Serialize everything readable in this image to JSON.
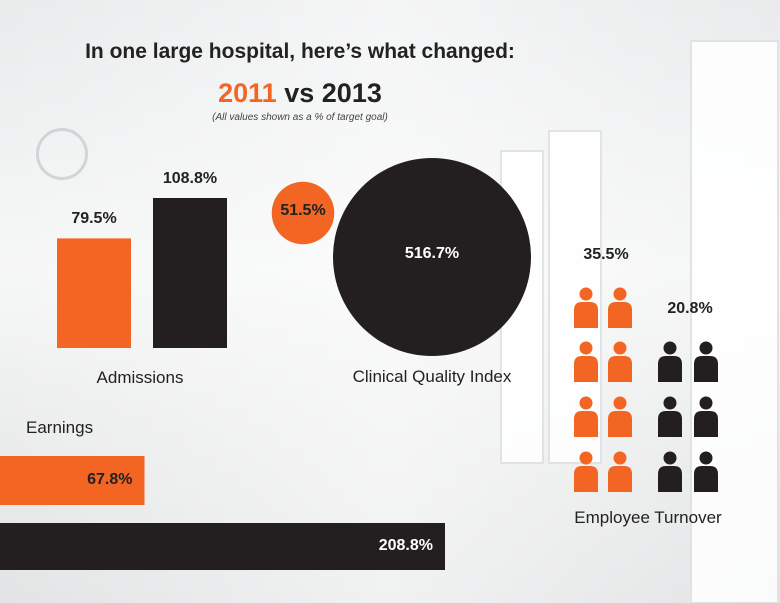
{
  "header": {
    "title": "In one large hospital, here’s what changed:",
    "year_a": "2011",
    "vs": "vs",
    "year_b": "2013",
    "subtitle": "(All values shown as a % of target goal)"
  },
  "colors": {
    "year_2011": "#f26522",
    "year_2013": "#231f20"
  },
  "chart_data": [
    {
      "type": "bar",
      "name": "Admissions",
      "categories": [
        "2011",
        "2013"
      ],
      "values": [
        79.5,
        108.8
      ],
      "value_labels": [
        "79.5%",
        "108.8%"
      ]
    },
    {
      "type": "bubble",
      "name": "Clinical Quality Index",
      "categories": [
        "2011",
        "2013"
      ],
      "values": [
        51.5,
        516.7
      ],
      "value_labels": [
        "51.5%",
        "516.7%"
      ]
    },
    {
      "type": "bar",
      "orientation": "horizontal",
      "name": "Earnings",
      "categories": [
        "2011",
        "2013"
      ],
      "values": [
        67.8,
        208.8
      ],
      "value_labels": [
        "67.8%",
        "208.8%"
      ]
    },
    {
      "type": "pictograph",
      "name": "Employee Turnover",
      "categories": [
        "2011",
        "2013"
      ],
      "values": [
        35.5,
        20.8
      ],
      "value_labels": [
        "35.5%",
        "20.8%"
      ]
    }
  ],
  "icons": [
    "person-icon"
  ]
}
